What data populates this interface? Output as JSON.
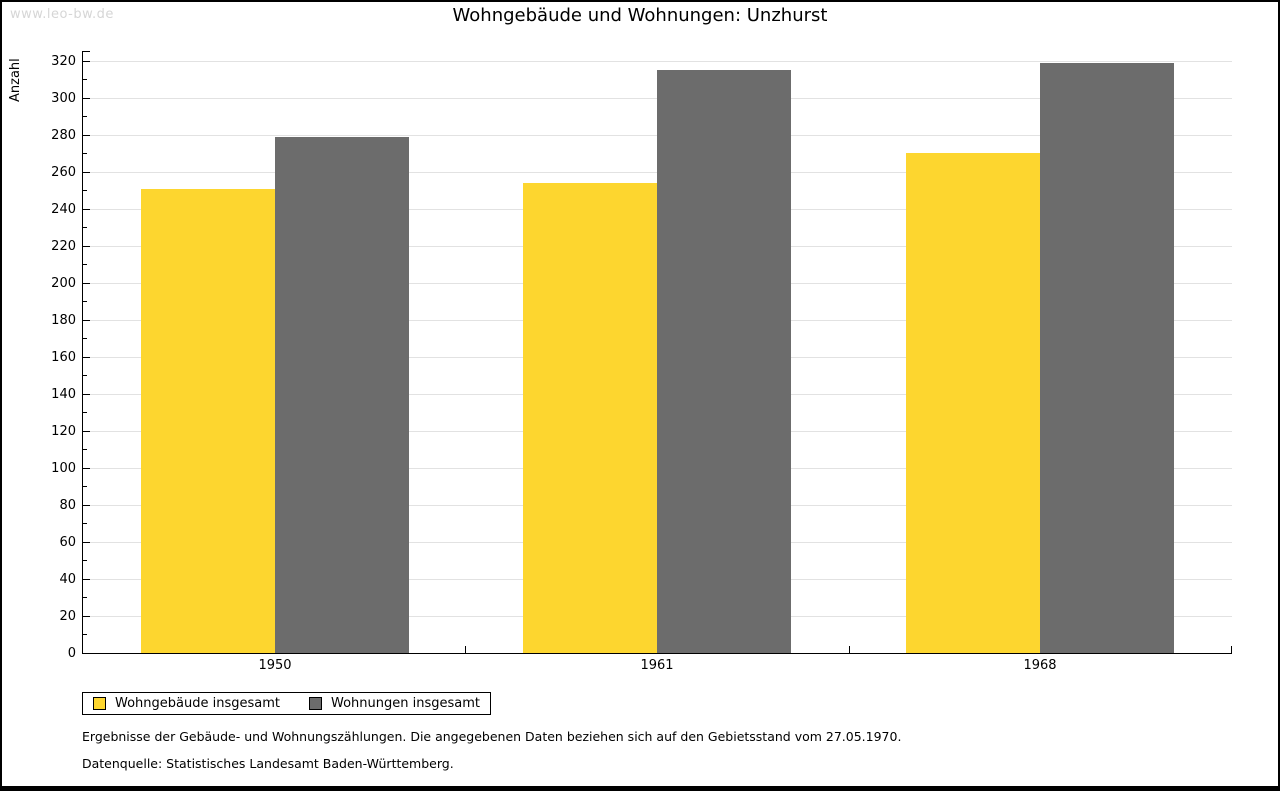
{
  "page": {
    "watermark": "www.leo-bw.de"
  },
  "chart_data": {
    "type": "bar",
    "title": "Wohngebäude und Wohnungen: Unzhurst",
    "xlabel": "",
    "ylabel": "Anzahl",
    "categories": [
      "1950",
      "1961",
      "1968"
    ],
    "series": [
      {
        "name": "Wohngebäude insgesamt",
        "color": "#FDD62F",
        "values": [
          251,
          254,
          270
        ]
      },
      {
        "name": "Wohnungen insgesamt",
        "color": "#6C6C6C",
        "values": [
          279,
          315,
          319
        ]
      }
    ],
    "ylim": [
      0,
      320
    ],
    "y_major_step": 20,
    "y_minor_step": 10,
    "grid": "horizontal-major-only",
    "legend_position": "bottom-left",
    "bar_colors": {
      "wohngebaeude": "#FDD62F",
      "wohnungen": "#6C6C6C"
    },
    "gridline_color": "#E2E2E2",
    "axis_color": "#000000"
  },
  "footer": {
    "note": "Ergebnisse der Gebäude- und Wohnungszählungen. Die angegebenen Daten beziehen sich auf den Gebietsstand vom 27.05.1970.",
    "source": "Datenquelle: Statistisches Landesamt Baden-Württemberg."
  }
}
